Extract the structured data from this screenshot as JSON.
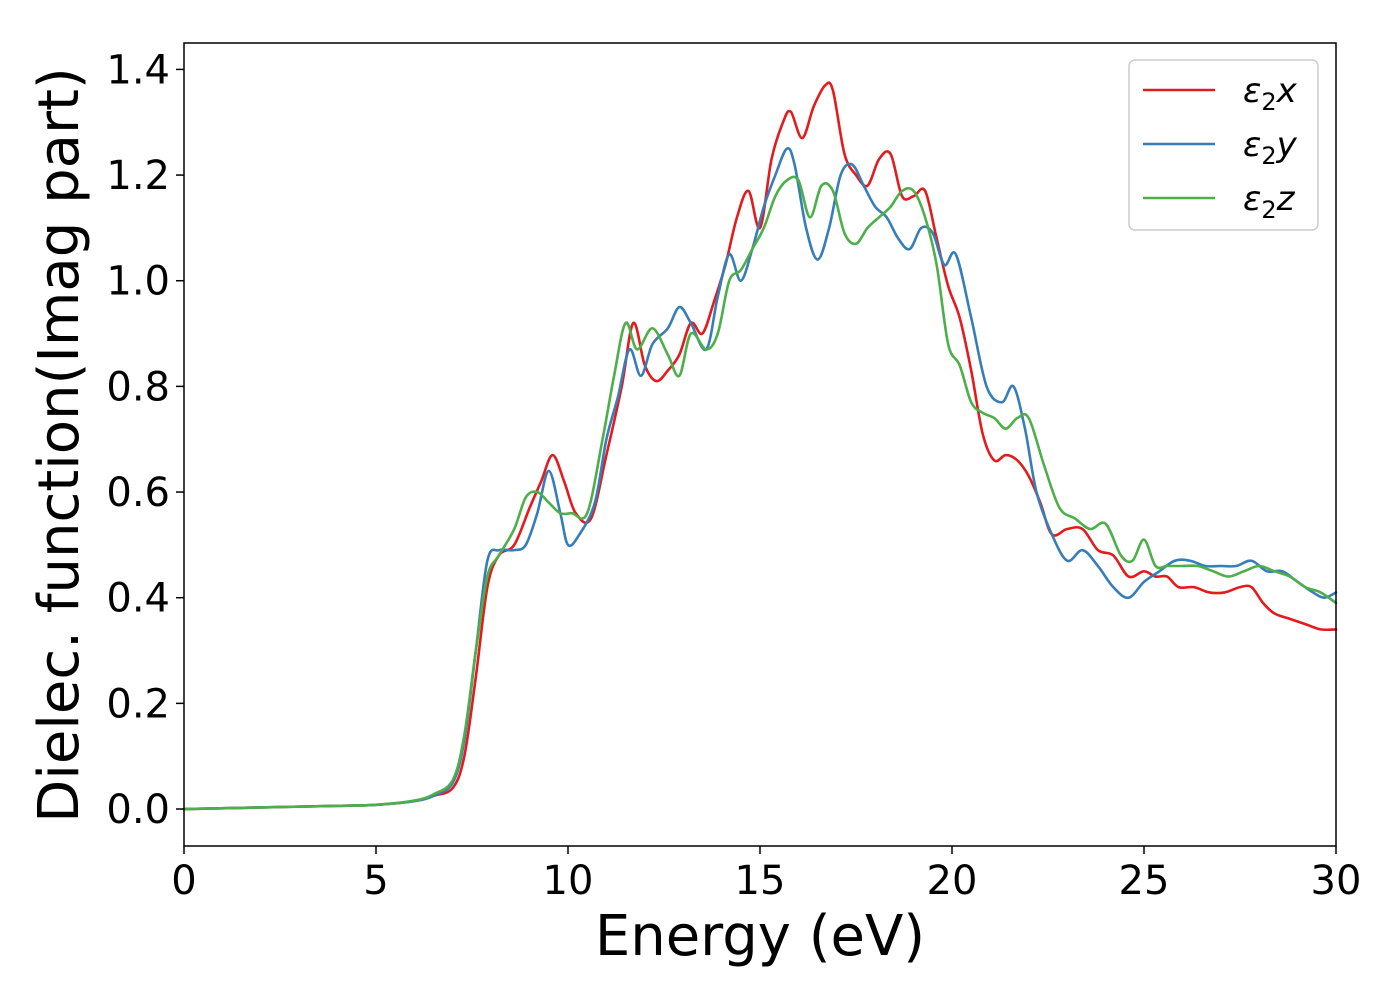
{
  "chart_data": {
    "type": "line",
    "title": "",
    "xlabel": "Energy (eV)",
    "ylabel": "Dielec. function(Imag part)",
    "xlim": [
      0,
      30
    ],
    "ylim": [
      -0.07,
      1.45
    ],
    "xticks": [
      0,
      5,
      10,
      15,
      20,
      25,
      30
    ],
    "xtick_labels": [
      "0",
      "5",
      "10",
      "15",
      "20",
      "25",
      "30"
    ],
    "yticks": [
      0.0,
      0.2,
      0.4,
      0.6,
      0.8,
      1.0,
      1.2,
      1.4
    ],
    "ytick_labels": [
      "0.0",
      "0.2",
      "0.4",
      "0.6",
      "0.8",
      "1.0",
      "1.2",
      "1.4"
    ],
    "grid": false,
    "legend_position": "top-right",
    "series": [
      {
        "name": "ε₂x",
        "legend_main": "ε",
        "legend_sub": "2",
        "legend_suffix": "x",
        "color": "#e41a1c",
        "x": [
          0,
          2,
          4,
          5,
          6,
          6.5,
          7,
          7.3,
          7.6,
          7.9,
          8.2,
          8.6,
          9.0,
          9.3,
          9.6,
          9.9,
          10.2,
          10.6,
          11.0,
          11.4,
          11.7,
          12.0,
          12.3,
          12.6,
          12.9,
          13.2,
          13.5,
          13.8,
          14.1,
          14.4,
          14.7,
          15.0,
          15.3,
          15.6,
          15.8,
          16.1,
          16.4,
          16.7,
          16.9,
          17.2,
          17.5,
          17.8,
          18.1,
          18.4,
          18.7,
          19.0,
          19.3,
          19.6,
          19.9,
          20.2,
          20.5,
          20.8,
          21.1,
          21.4,
          21.7,
          22.0,
          22.3,
          22.6,
          23.0,
          23.4,
          23.8,
          24.2,
          24.6,
          25.0,
          25.3,
          25.6,
          25.9,
          26.3,
          26.7,
          27.1,
          27.5,
          27.8,
          28.1,
          28.4,
          28.8,
          29.2,
          29.6,
          30.0
        ],
        "y": [
          0.0,
          0.003,
          0.006,
          0.008,
          0.015,
          0.025,
          0.04,
          0.1,
          0.25,
          0.42,
          0.48,
          0.5,
          0.57,
          0.62,
          0.67,
          0.62,
          0.56,
          0.55,
          0.67,
          0.8,
          0.92,
          0.84,
          0.81,
          0.83,
          0.86,
          0.92,
          0.9,
          0.96,
          1.03,
          1.12,
          1.17,
          1.1,
          1.23,
          1.3,
          1.32,
          1.27,
          1.33,
          1.37,
          1.36,
          1.24,
          1.2,
          1.18,
          1.23,
          1.24,
          1.16,
          1.16,
          1.17,
          1.08,
          0.99,
          0.93,
          0.83,
          0.71,
          0.66,
          0.67,
          0.66,
          0.63,
          0.58,
          0.52,
          0.53,
          0.53,
          0.49,
          0.48,
          0.44,
          0.45,
          0.44,
          0.44,
          0.42,
          0.42,
          0.41,
          0.41,
          0.42,
          0.42,
          0.39,
          0.37,
          0.36,
          0.35,
          0.34,
          0.34
        ]
      },
      {
        "name": "ε₂y",
        "legend_main": "ε",
        "legend_sub": "2",
        "legend_suffix": "y",
        "color": "#377eb8",
        "x": [
          0,
          2,
          4,
          5,
          6,
          6.5,
          7,
          7.3,
          7.6,
          7.9,
          8.2,
          8.6,
          8.9,
          9.2,
          9.5,
          9.8,
          10.0,
          10.3,
          10.7,
          11.0,
          11.3,
          11.6,
          11.9,
          12.2,
          12.6,
          12.9,
          13.2,
          13.6,
          13.9,
          14.2,
          14.5,
          14.8,
          15.1,
          15.4,
          15.7,
          15.9,
          16.2,
          16.5,
          16.8,
          17.1,
          17.4,
          17.7,
          18.0,
          18.3,
          18.6,
          18.9,
          19.2,
          19.5,
          19.8,
          20.1,
          20.5,
          20.9,
          21.3,
          21.6,
          21.9,
          22.2,
          22.6,
          23.0,
          23.4,
          23.8,
          24.2,
          24.6,
          25.0,
          25.4,
          25.8,
          26.2,
          26.6,
          27.0,
          27.4,
          27.8,
          28.2,
          28.6,
          29.0,
          29.4,
          29.7,
          30.0
        ],
        "y": [
          0.0,
          0.003,
          0.006,
          0.008,
          0.015,
          0.025,
          0.05,
          0.13,
          0.3,
          0.47,
          0.49,
          0.49,
          0.5,
          0.56,
          0.64,
          0.56,
          0.5,
          0.52,
          0.58,
          0.7,
          0.78,
          0.87,
          0.82,
          0.88,
          0.91,
          0.95,
          0.92,
          0.87,
          0.97,
          1.05,
          1.0,
          1.06,
          1.14,
          1.2,
          1.25,
          1.22,
          1.1,
          1.04,
          1.1,
          1.2,
          1.22,
          1.18,
          1.14,
          1.12,
          1.08,
          1.06,
          1.1,
          1.09,
          1.03,
          1.05,
          0.93,
          0.8,
          0.77,
          0.8,
          0.72,
          0.6,
          0.52,
          0.47,
          0.49,
          0.46,
          0.42,
          0.4,
          0.43,
          0.45,
          0.47,
          0.47,
          0.46,
          0.46,
          0.46,
          0.47,
          0.45,
          0.45,
          0.43,
          0.41,
          0.4,
          0.41
        ]
      },
      {
        "name": "ε₂z",
        "legend_main": "ε",
        "legend_sub": "2",
        "legend_suffix": "z",
        "color": "#4daf4a",
        "x": [
          0,
          2,
          4,
          5,
          6,
          6.5,
          7,
          7.3,
          7.6,
          7.9,
          8.2,
          8.6,
          8.9,
          9.2,
          9.5,
          9.8,
          10.1,
          10.5,
          10.9,
          11.2,
          11.5,
          11.8,
          12.2,
          12.6,
          12.9,
          13.2,
          13.6,
          13.9,
          14.2,
          14.5,
          14.8,
          15.1,
          15.4,
          15.7,
          16.0,
          16.3,
          16.6,
          16.9,
          17.2,
          17.5,
          17.8,
          18.1,
          18.4,
          18.7,
          19.0,
          19.3,
          19.6,
          19.9,
          20.2,
          20.5,
          20.8,
          21.1,
          21.4,
          21.7,
          22.0,
          22.4,
          22.8,
          23.2,
          23.6,
          24.0,
          24.4,
          24.7,
          25.0,
          25.3,
          25.6,
          26.0,
          26.4,
          26.8,
          27.2,
          27.6,
          28.0,
          28.4,
          28.8,
          29.2,
          29.6,
          30.0
        ],
        "y": [
          0.0,
          0.003,
          0.006,
          0.008,
          0.016,
          0.028,
          0.055,
          0.14,
          0.3,
          0.44,
          0.48,
          0.53,
          0.59,
          0.6,
          0.58,
          0.56,
          0.56,
          0.56,
          0.7,
          0.82,
          0.92,
          0.87,
          0.91,
          0.86,
          0.82,
          0.9,
          0.87,
          0.9,
          1.0,
          1.02,
          1.06,
          1.1,
          1.16,
          1.19,
          1.19,
          1.12,
          1.18,
          1.17,
          1.09,
          1.07,
          1.1,
          1.12,
          1.14,
          1.17,
          1.17,
          1.12,
          1.03,
          0.88,
          0.84,
          0.77,
          0.75,
          0.74,
          0.72,
          0.74,
          0.74,
          0.65,
          0.57,
          0.55,
          0.53,
          0.54,
          0.48,
          0.47,
          0.51,
          0.46,
          0.46,
          0.46,
          0.46,
          0.45,
          0.44,
          0.45,
          0.46,
          0.45,
          0.44,
          0.42,
          0.41,
          0.39
        ]
      }
    ]
  }
}
